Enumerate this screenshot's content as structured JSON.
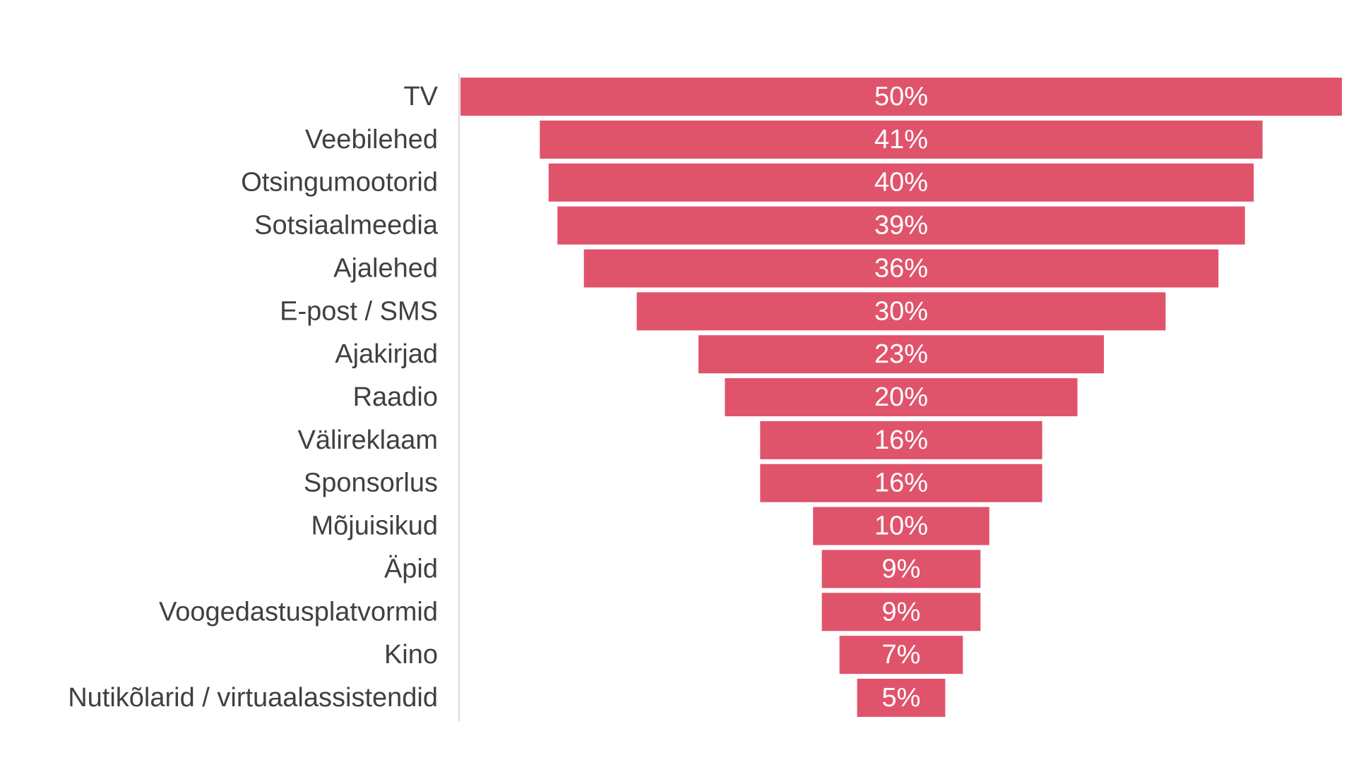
{
  "chart_data": {
    "type": "bar",
    "orientation": "horizontal",
    "style": "funnel",
    "categories": [
      "TV",
      "Veebilehed",
      "Otsingumootorid",
      "Sotsiaalmeedia",
      "Ajalehed",
      "E-post / SMS",
      "Ajakirjad",
      "Raadio",
      "Välireklaam",
      "Sponsorlus",
      "Mõjuisikud",
      "Äpid",
      "Voogedastusplatvormid",
      "Kino",
      "Nutikõlarid / virtuaalassistendid"
    ],
    "values": [
      50,
      41,
      40,
      39,
      36,
      30,
      23,
      20,
      16,
      16,
      10,
      9,
      9,
      7,
      5
    ],
    "data_labels": [
      "50%",
      "41%",
      "40%",
      "39%",
      "36%",
      "30%",
      "23%",
      "20%",
      "16%",
      "16%",
      "10%",
      "9%",
      "9%",
      "7%",
      "5%"
    ],
    "xlim": [
      0,
      50
    ],
    "unit": "%",
    "grid": false,
    "legend": "none",
    "bar_color": "#e0546b",
    "text_color": "#404040",
    "value_label_color": "#ffffff",
    "axis_line_color": "#d9d9d9"
  }
}
